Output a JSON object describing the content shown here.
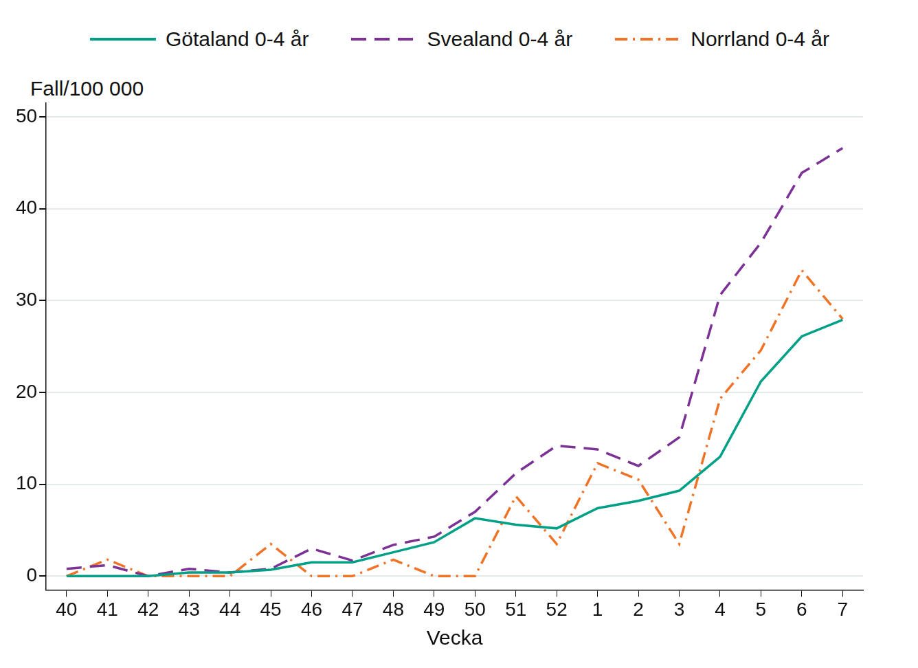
{
  "chart_data": {
    "type": "line",
    "x_label": "Vecka",
    "y_label": "Fall/100 000",
    "categories": [
      "40",
      "41",
      "42",
      "43",
      "44",
      "45",
      "46",
      "47",
      "48",
      "49",
      "50",
      "51",
      "52",
      "1",
      "2",
      "3",
      "4",
      "5",
      "6",
      "7"
    ],
    "series": [
      {
        "name": "Götaland 0-4 år",
        "color": "#00a087",
        "line_style": "solid",
        "values": [
          0,
          0,
          0,
          0.4,
          0.4,
          0.7,
          1.5,
          1.5,
          2.6,
          3.7,
          6.3,
          5.6,
          5.2,
          7.4,
          8.2,
          9.3,
          13.0,
          21.2,
          26.1,
          27.9
        ]
      },
      {
        "name": "Svealand 0-4 år",
        "color": "#7b3294",
        "line_style": "dashed",
        "values": [
          0.8,
          1.2,
          0,
          0.8,
          0.4,
          0.8,
          3.0,
          1.7,
          3.4,
          4.3,
          7.0,
          11.2,
          14.2,
          13.8,
          12.0,
          15.1,
          30.6,
          36.3,
          43.9,
          46.6
        ]
      },
      {
        "name": "Norrland 0-4 år",
        "color": "#f07427",
        "line_style": "dashdot",
        "values": [
          0,
          1.8,
          0,
          0,
          0,
          3.5,
          0,
          0,
          1.8,
          0,
          0,
          8.7,
          3.5,
          12.3,
          10.5,
          3.5,
          19.3,
          24.6,
          33.3,
          28.0
        ]
      }
    ],
    "ylim": [
      -1.5,
      51.5
    ],
    "yticks": [
      0,
      10,
      20,
      30,
      40,
      50
    ],
    "grid": true,
    "legend": "top"
  }
}
